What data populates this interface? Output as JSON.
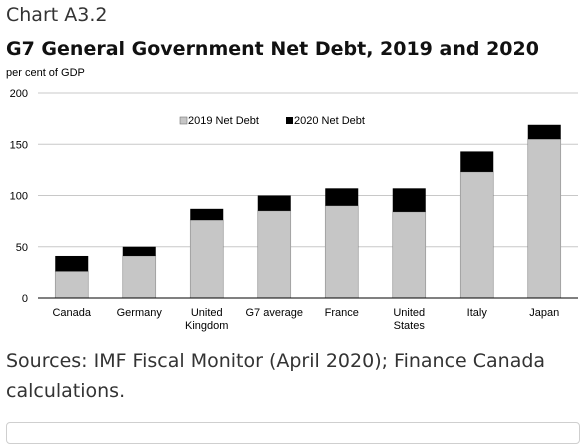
{
  "header": {
    "chart_label": "Chart A3.2",
    "title": "G7 General Government Net Debt, 2019 and 2020",
    "unit": "per cent of GDP"
  },
  "sources": "Sources: IMF Fiscal Monitor (April 2020); Finance Canada calculations.",
  "colors": {
    "series_2019": "#c6c6c6",
    "series_2020": "#000000",
    "gridline": "#c8c8c8",
    "axis": "#000000"
  },
  "chart_data": {
    "type": "bar",
    "stacked": true,
    "categories": [
      [
        "Canada"
      ],
      [
        "Germany"
      ],
      [
        "United",
        "Kingdom"
      ],
      [
        "G7 average"
      ],
      [
        "France"
      ],
      [
        "United",
        "States"
      ],
      [
        "Italy"
      ],
      [
        "Japan"
      ]
    ],
    "series": [
      {
        "name": "2019 Net Debt",
        "values": [
          26,
          41,
          76,
          85,
          90,
          84,
          123,
          155
        ]
      },
      {
        "name": "2020 Net Debt",
        "values": [
          15,
          9,
          11,
          15,
          17,
          23,
          20,
          14
        ]
      }
    ],
    "ylim": [
      0,
      200
    ],
    "yticks": [
      0,
      50,
      100,
      150,
      200
    ],
    "grid": true,
    "legend_position": "top-right"
  }
}
